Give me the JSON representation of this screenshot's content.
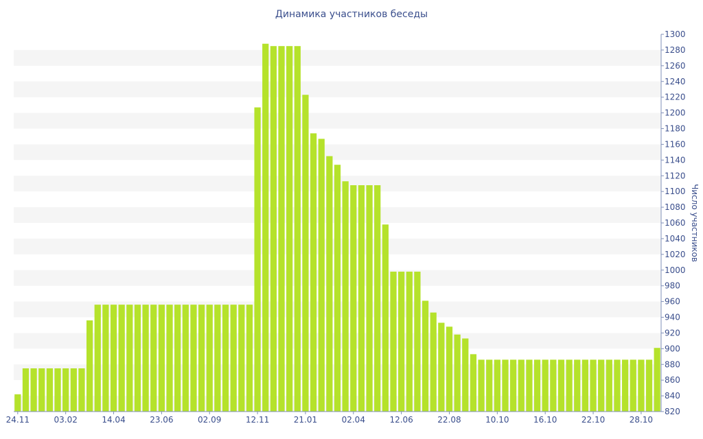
{
  "chart_data": {
    "type": "bar",
    "title": "Динамика участников беседы",
    "ylabel": "Число участников",
    "xlabel": "",
    "ylim": [
      820,
      1300
    ],
    "y_axis_side": "right",
    "y_ticks": [
      820,
      840,
      860,
      880,
      900,
      920,
      940,
      960,
      980,
      1000,
      1020,
      1040,
      1060,
      1080,
      1100,
      1120,
      1140,
      1160,
      1180,
      1200,
      1220,
      1240,
      1260,
      1280,
      1300
    ],
    "x_tick_labels": [
      {
        "index": 0,
        "label": "24.11"
      },
      {
        "index": 6,
        "label": "03.02"
      },
      {
        "index": 12,
        "label": "14.04"
      },
      {
        "index": 18,
        "label": "23.06"
      },
      {
        "index": 24,
        "label": "02.09"
      },
      {
        "index": 30,
        "label": "12.11"
      },
      {
        "index": 36,
        "label": "21.01"
      },
      {
        "index": 42,
        "label": "02.04"
      },
      {
        "index": 48,
        "label": "12.06"
      },
      {
        "index": 54,
        "label": "22.08"
      },
      {
        "index": 60,
        "label": "10.10"
      },
      {
        "index": 66,
        "label": "16.10"
      },
      {
        "index": 72,
        "label": "22.10"
      },
      {
        "index": 78,
        "label": "28.10"
      }
    ],
    "grid": "alternating horizontal bands",
    "bar_color": "#b5e22b",
    "values": [
      842,
      875,
      875,
      875,
      875,
      875,
      875,
      875,
      875,
      936,
      956,
      956,
      956,
      956,
      956,
      956,
      956,
      956,
      956,
      956,
      956,
      956,
      956,
      956,
      956,
      956,
      956,
      956,
      956,
      956,
      1207,
      1288,
      1285,
      1285,
      1285,
      1285,
      1223,
      1174,
      1167,
      1145,
      1134,
      1113,
      1108,
      1108,
      1108,
      1108,
      1058,
      998,
      998,
      998,
      998,
      961,
      946,
      933,
      928,
      918,
      913,
      893,
      886,
      886,
      886,
      886,
      886,
      886,
      886,
      886,
      886,
      886,
      886,
      886,
      886,
      886,
      886,
      886,
      886,
      886,
      886,
      886,
      886,
      886,
      901
    ]
  },
  "colors": {
    "bar": "#b5e22b",
    "band": "#f5f5f5",
    "text": "#3a4e8c",
    "axis": "#7f8fb8"
  }
}
